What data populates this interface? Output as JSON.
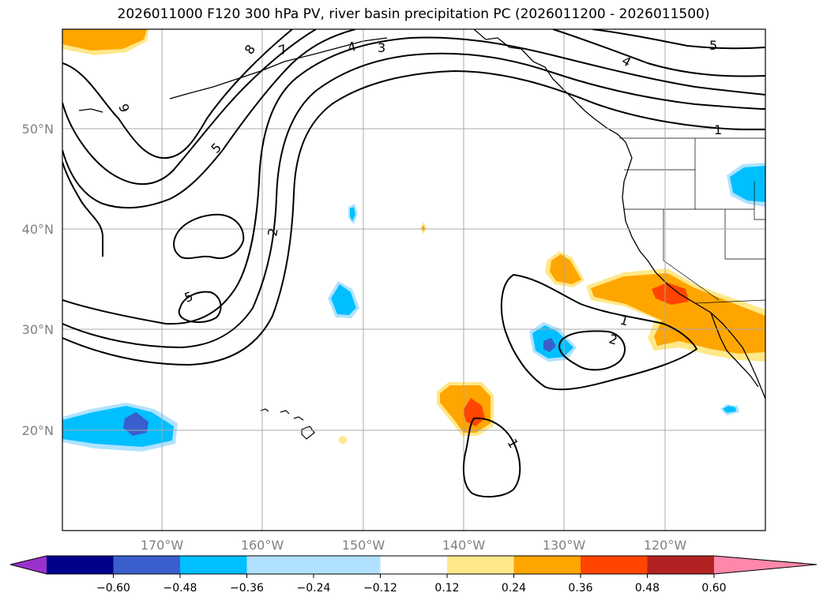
{
  "title": "2026011000 F120 300 hPa PV, river basin precipitation PC (2026011200 - 2026011500)",
  "map": {
    "lat_labels": [
      "50°N",
      "40°N",
      "30°N",
      "20°N"
    ],
    "lon_labels": [
      "170°W",
      "160°W",
      "150°W",
      "140°W",
      "130°W",
      "120°W"
    ],
    "contour_labels": [
      "8",
      "7",
      "4",
      "3",
      "9",
      "5",
      "2",
      "5",
      "4",
      "5",
      "1",
      "1",
      "2",
      "1"
    ]
  },
  "colorbar": {
    "ticks": [
      "−0.60",
      "−0.48",
      "−0.36",
      "−0.24",
      "−0.12",
      "0.12",
      "0.24",
      "0.36",
      "0.48",
      "0.60"
    ],
    "colors": [
      "#9932cc",
      "#00008b",
      "#3a5fcd",
      "#00bfff",
      "#b0e2ff",
      "#ffffff",
      "#ffe88a",
      "#ffa500",
      "#ff4500",
      "#b22222",
      "#ff88aa"
    ]
  }
}
